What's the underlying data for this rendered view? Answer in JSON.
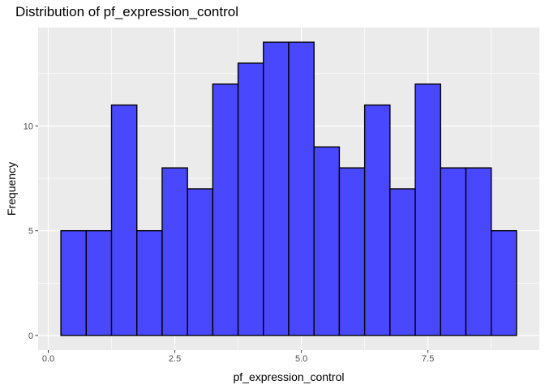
{
  "chart_data": {
    "type": "bar",
    "title": "Distribution of pf_expression_control",
    "xlabel": "pf_expression_control",
    "ylabel": "Frequency",
    "xlim": [
      -0.2,
      9.7
    ],
    "ylim": [
      -0.7,
      14.7
    ],
    "x_ticks": [
      {
        "value": 0.0,
        "label": "0.0"
      },
      {
        "value": 2.5,
        "label": "2.5"
      },
      {
        "value": 5.0,
        "label": "5.0"
      },
      {
        "value": 7.5,
        "label": "7.5"
      }
    ],
    "y_ticks": [
      {
        "value": 0,
        "label": "0"
      },
      {
        "value": 5,
        "label": "5"
      },
      {
        "value": 10,
        "label": "10"
      }
    ],
    "bin_width": 0.5,
    "bin_centers": [
      0.5,
      1.0,
      1.5,
      2.0,
      2.5,
      3.0,
      3.5,
      4.0,
      4.5,
      5.0,
      5.5,
      6.0,
      6.5,
      7.0,
      7.5,
      8.0,
      8.5,
      9.0
    ],
    "values": [
      5,
      5,
      11,
      5,
      8,
      7,
      12,
      13,
      14,
      14,
      9,
      8,
      11,
      7,
      12,
      8,
      8,
      5
    ],
    "fill_color": "#4A48FF",
    "outline_color": "#000000",
    "panel_color": "#EBEBEB",
    "grid": true
  }
}
